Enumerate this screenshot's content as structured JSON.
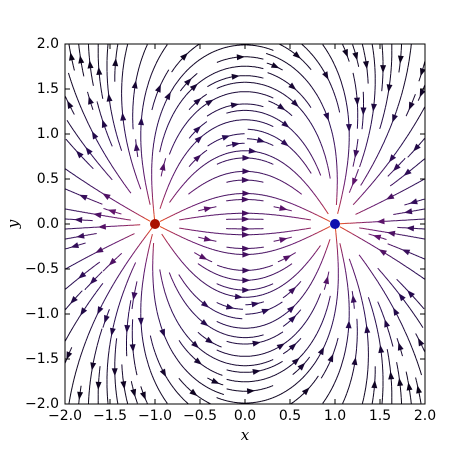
{
  "chart_data": {
    "type": "streamplot",
    "x_label": "x",
    "y_label": "y",
    "xlim": [
      -2,
      2
    ],
    "ylim": [
      -2,
      2
    ],
    "xticks": [
      {
        "value": -2,
        "label": "−2.0"
      },
      {
        "value": -1.5,
        "label": "−1.5"
      },
      {
        "value": -1,
        "label": "−1.0"
      },
      {
        "value": -0.5,
        "label": "−0.5"
      },
      {
        "value": 0,
        "label": "0.0"
      },
      {
        "value": 0.5,
        "label": "0.5"
      },
      {
        "value": 1,
        "label": "1.0"
      },
      {
        "value": 1.5,
        "label": "1.5"
      },
      {
        "value": 2,
        "label": "2.0"
      }
    ],
    "yticks": [
      {
        "value": -2,
        "label": "−2.0"
      },
      {
        "value": -1.5,
        "label": "−1.5"
      },
      {
        "value": -1,
        "label": "−1.0"
      },
      {
        "value": -0.5,
        "label": "−0.5"
      },
      {
        "value": 0,
        "label": "0.0"
      },
      {
        "value": 0.5,
        "label": "0.5"
      },
      {
        "value": 1,
        "label": "1.0"
      },
      {
        "value": 1.5,
        "label": "1.5"
      },
      {
        "value": 2,
        "label": "2.0"
      }
    ],
    "points": {
      "x": [
        -1,
        1
      ],
      "y": [
        0,
        0
      ],
      "charges": [
        1,
        -1
      ],
      "colors": [
        "#aa1100",
        "#1010b0"
      ]
    }
  }
}
